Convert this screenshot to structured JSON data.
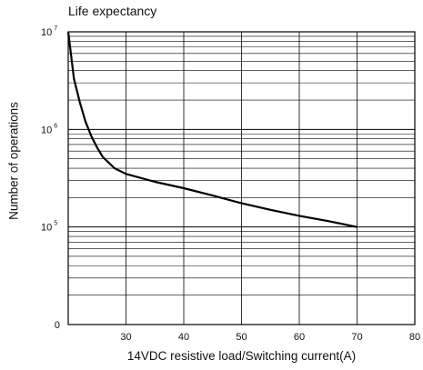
{
  "chart_data": {
    "type": "line",
    "title": "Life expectancy",
    "xlabel": "14VDC resistive load/Switching current(A)",
    "ylabel": "Number of operations",
    "x_ticks": [
      "30",
      "40",
      "50",
      "60",
      "70",
      "80"
    ],
    "y_ticks": [
      {
        "label": "0",
        "exp": ""
      },
      {
        "label": "10",
        "exp": "5"
      },
      {
        "label": "10",
        "exp": "6"
      },
      {
        "label": "10",
        "exp": "7"
      }
    ],
    "xlim": [
      20,
      80
    ],
    "ylim": [
      10000,
      10000000
    ],
    "y_scale": "log",
    "grid": true,
    "series": [
      {
        "x": [
          20,
          21,
          22,
          23,
          24,
          25,
          26,
          28,
          30,
          35,
          40,
          45,
          50,
          55,
          60,
          65,
          70
        ],
        "y": [
          10000000,
          3300000,
          1900000,
          1200000,
          850000,
          650000,
          520000,
          400000,
          350000,
          290000,
          250000,
          210000,
          175000,
          150000,
          130000,
          115000,
          100000
        ]
      }
    ]
  }
}
